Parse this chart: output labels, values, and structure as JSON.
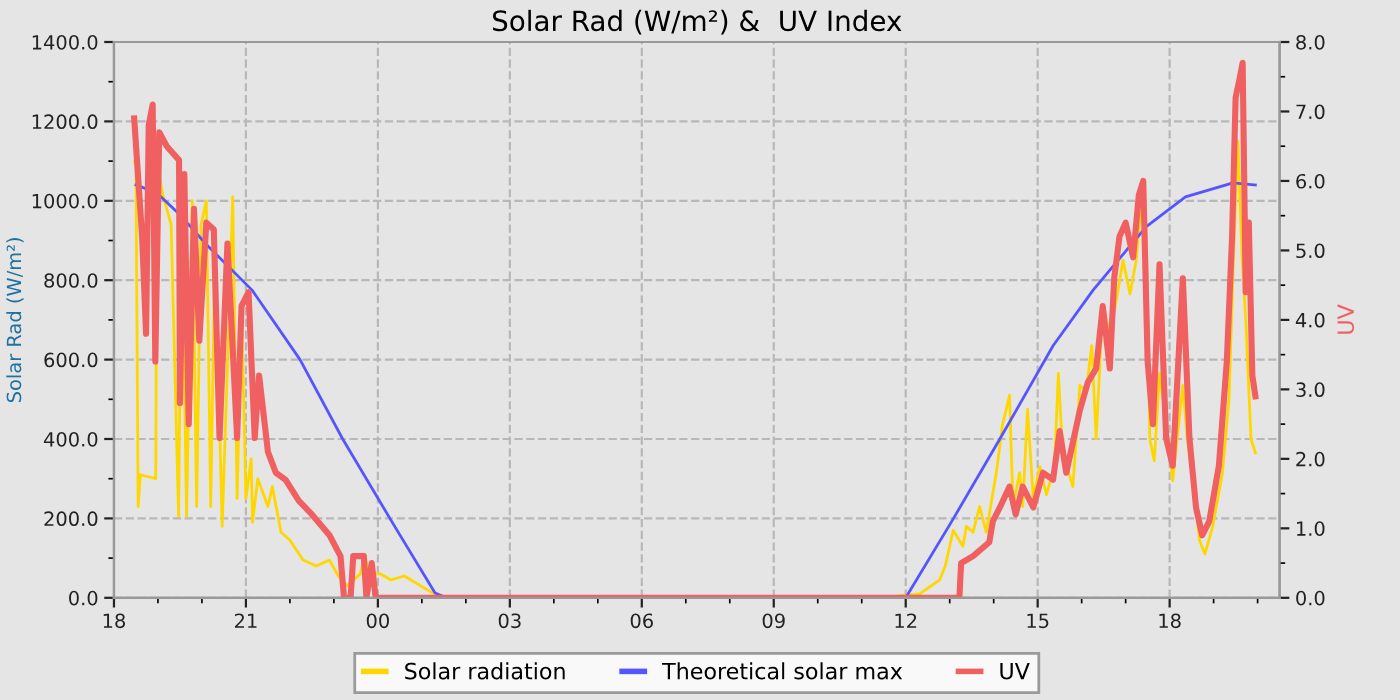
{
  "chart_data": {
    "type": "line",
    "title": "Solar Rad (W/m²) &  UV Index",
    "ylabel": "Solar Rad (W/m²)",
    "y2label": "UV",
    "xlim": [
      18,
      44.5
    ],
    "xticks": [
      {
        "value": 18,
        "label": "18"
      },
      {
        "value": 21,
        "label": "21"
      },
      {
        "value": 24,
        "label": "00"
      },
      {
        "value": 27,
        "label": "03"
      },
      {
        "value": 30,
        "label": "06"
      },
      {
        "value": 33,
        "label": "09"
      },
      {
        "value": 36,
        "label": "12"
      },
      {
        "value": 39,
        "label": "15"
      },
      {
        "value": 42,
        "label": "18"
      }
    ],
    "ylim": [
      0,
      1400
    ],
    "yticks": [
      {
        "value": 0,
        "label": "0.0"
      },
      {
        "value": 200,
        "label": "200.0"
      },
      {
        "value": 400,
        "label": "400.0"
      },
      {
        "value": 600,
        "label": "600.0"
      },
      {
        "value": 800,
        "label": "800.0"
      },
      {
        "value": 1000,
        "label": "1000.0"
      },
      {
        "value": 1200,
        "label": "1200.0"
      },
      {
        "value": 1400,
        "label": "1400.0"
      }
    ],
    "y2lim": [
      0,
      8
    ],
    "y2ticks": [
      {
        "value": 0,
        "label": "0.0"
      },
      {
        "value": 1,
        "label": "1.0"
      },
      {
        "value": 2,
        "label": "2.0"
      },
      {
        "value": 3,
        "label": "3.0"
      },
      {
        "value": 4,
        "label": "4.0"
      },
      {
        "value": 5,
        "label": "5.0"
      },
      {
        "value": 6,
        "label": "6.0"
      },
      {
        "value": 7,
        "label": "7.0"
      },
      {
        "value": 8,
        "label": "8.0"
      }
    ],
    "grid": true,
    "legend": "bottom",
    "marker": "none",
    "line_style": "solid",
    "series": [
      {
        "name": "Solar radiation",
        "color": "#ffd700",
        "x": [
          18.47,
          18.5,
          18.55,
          18.6,
          18.95,
          18.98,
          19.1,
          19.3,
          19.47,
          19.54,
          19.65,
          19.78,
          19.88,
          19.98,
          20.1,
          20.2,
          20.3,
          20.46,
          20.6,
          20.7,
          20.8,
          20.9,
          21.0,
          21.12,
          21.15,
          21.27,
          21.5,
          21.6,
          21.8,
          22.0,
          22.3,
          22.6,
          22.9,
          23.1,
          23.3,
          23.6,
          23.7,
          23.8,
          24.06,
          24.3,
          24.6,
          24.9,
          25.2,
          25.5,
          35.4,
          35.86,
          36.32,
          36.77,
          36.9,
          37.08,
          37.3,
          37.38,
          37.53,
          37.68,
          37.83,
          38.06,
          38.2,
          38.36,
          38.44,
          38.59,
          38.66,
          38.77,
          38.9,
          39.05,
          39.2,
          39.38,
          39.47,
          39.57,
          39.8,
          39.96,
          40.1,
          40.23,
          40.33,
          40.48,
          40.64,
          40.79,
          40.94,
          41.1,
          41.24,
          41.4,
          41.47,
          41.55,
          41.65,
          41.77,
          41.95,
          42.07,
          42.3,
          42.4,
          42.53,
          42.68,
          42.8,
          42.98,
          43.2,
          43.35,
          43.45,
          43.55,
          43.65,
          43.73,
          43.85,
          43.95
        ],
        "values": [
          1100,
          1085,
          230,
          310,
          300,
          1100,
          1020,
          940,
          205,
          1020,
          205,
          1000,
          230,
          940,
          1000,
          230,
          900,
          180,
          650,
          1010,
          250,
          735,
          250,
          350,
          190,
          300,
          230,
          280,
          165,
          145,
          95,
          80,
          95,
          55,
          30,
          60,
          110,
          60,
          60,
          45,
          55,
          35,
          15,
          0,
          0,
          5,
          10,
          45,
          80,
          170,
          130,
          180,
          165,
          230,
          165,
          315,
          435,
          510,
          230,
          315,
          230,
          475,
          250,
          330,
          260,
          330,
          565,
          365,
          280,
          535,
          520,
          635,
          400,
          735,
          665,
          750,
          850,
          765,
          850,
          1050,
          900,
          400,
          345,
          565,
          415,
          295,
          535,
          400,
          295,
          145,
          110,
          180,
          315,
          500,
          850,
          1150,
          850,
          700,
          400,
          365
        ]
      },
      {
        "name": "Theoretical solar max",
        "color": "#5555ff",
        "x": [
          18.5,
          18.97,
          19.5,
          20.1,
          21.14,
          22.23,
          23.2,
          24.3,
          25.3,
          25.56,
          36.0,
          37.06,
          38.14,
          39.35,
          40.26,
          41.47,
          42.36,
          43.44,
          43.95
        ],
        "values": [
          1040,
          1020,
          965,
          890,
          775,
          600,
          400,
          195,
          12,
          0,
          0,
          195,
          400,
          635,
          775,
          935,
          1010,
          1045,
          1040
        ]
      },
      {
        "name": "UV",
        "color": "#f06060",
        "axis": "y2",
        "x": [
          18.46,
          18.64,
          18.73,
          18.79,
          18.88,
          18.94,
          19.03,
          19.2,
          19.48,
          19.5,
          19.6,
          19.7,
          19.82,
          19.94,
          20.1,
          20.27,
          20.4,
          20.58,
          20.8,
          20.9,
          21.06,
          21.2,
          21.3,
          21.5,
          21.68,
          21.9,
          22.2,
          22.5,
          22.9,
          23.15,
          23.23,
          23.38,
          23.44,
          23.68,
          23.74,
          23.86,
          23.95,
          37.22,
          37.26,
          37.53,
          37.9,
          37.98,
          38.14,
          38.36,
          38.5,
          38.66,
          38.9,
          39.12,
          39.35,
          39.5,
          39.65,
          39.96,
          40.14,
          40.33,
          40.48,
          40.64,
          40.74,
          40.86,
          41.0,
          41.17,
          41.3,
          41.4,
          41.5,
          41.62,
          41.77,
          41.92,
          42.07,
          42.3,
          42.45,
          42.6,
          42.74,
          42.9,
          43.12,
          43.3,
          43.42,
          43.5,
          43.6,
          43.66,
          43.73,
          43.8,
          43.88,
          43.95
        ],
        "values": [
          6.9,
          5.2,
          3.8,
          6.8,
          7.1,
          3.4,
          6.7,
          6.5,
          6.3,
          2.8,
          6.1,
          2.5,
          5.6,
          3.7,
          5.4,
          5.3,
          2.3,
          5.1,
          2.3,
          4.2,
          4.4,
          2.3,
          3.2,
          2.1,
          1.8,
          1.7,
          1.4,
          1.2,
          0.9,
          0.6,
          0,
          0,
          0.6,
          0.6,
          0,
          0.5,
          0,
          0,
          0.5,
          0.6,
          0.8,
          1.1,
          1.3,
          1.6,
          1.2,
          1.6,
          1.3,
          1.8,
          1.7,
          2.4,
          1.8,
          2.7,
          3.1,
          3.3,
          4.2,
          3.3,
          4.6,
          5.2,
          5.4,
          4.9,
          5.8,
          6.0,
          3.4,
          2.5,
          4.8,
          2.3,
          1.9,
          4.6,
          2.3,
          1.3,
          0.9,
          1.1,
          1.9,
          3.4,
          5.2,
          7.2,
          7.5,
          7.7,
          4.4,
          5.4,
          3.2,
          2.9
        ]
      }
    ]
  }
}
